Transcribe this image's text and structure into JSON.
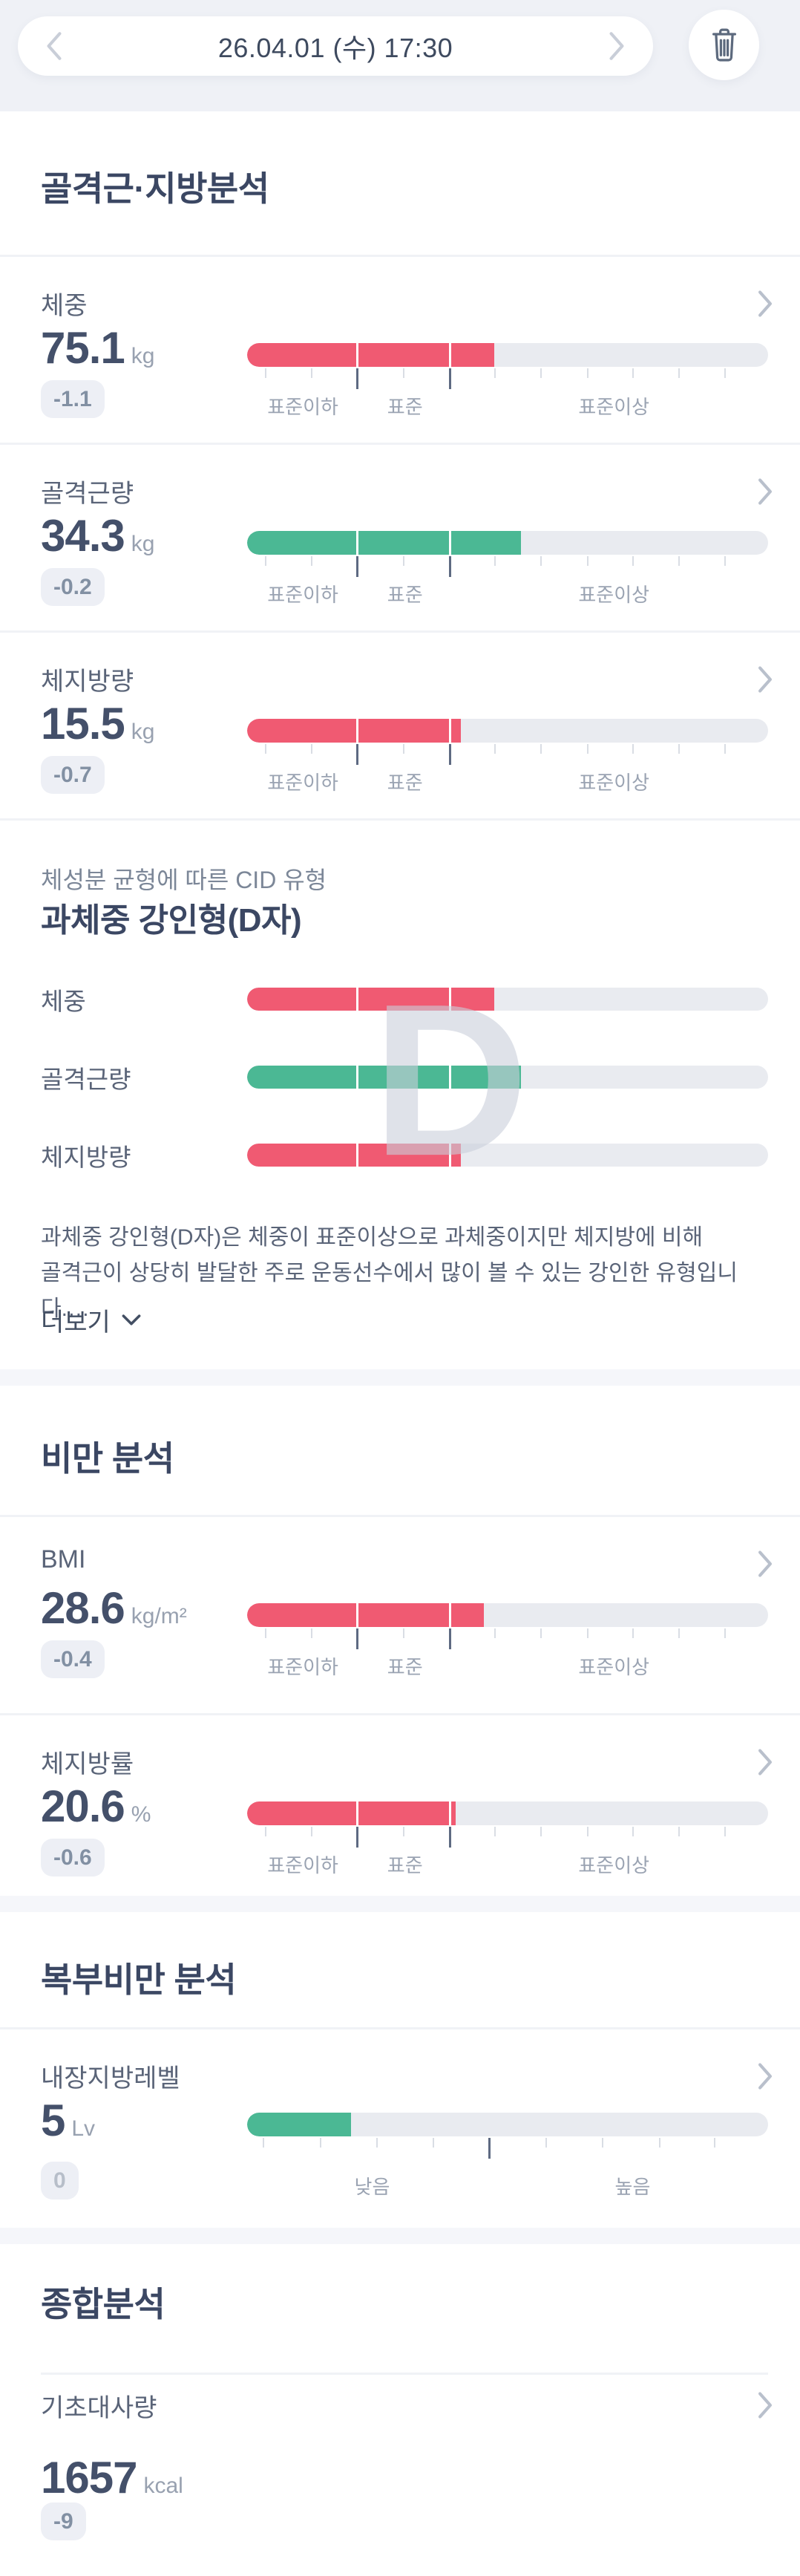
{
  "nav": {
    "date": "26.04.01 (수) 17:30",
    "prev_icon": "chevron-left",
    "next_icon": "chevron-right",
    "delete_icon": "trash"
  },
  "colors": {
    "accent_pink": "#F05A72",
    "accent_green": "#4BB894",
    "track_gray": "#E9EBF0",
    "title_navy": "#3B4763",
    "badge_bg": "#EDEFF5"
  },
  "scales": {
    "standard": {
      "ticks": [
        3.4,
        12.2,
        21,
        29.9,
        38.7,
        47.5,
        56.3,
        65.2,
        74,
        82.8,
        91.6
      ],
      "tall_indices": [
        2,
        4
      ],
      "separators": [
        21,
        38.7
      ],
      "labels": [
        {
          "text": "표준이하",
          "pos": 10.7
        },
        {
          "text": "표준",
          "pos": 30.3
        },
        {
          "text": "표준이상",
          "pos": 70.4
        }
      ]
    },
    "visceral": {
      "ticks": [
        3,
        13.9,
        24.8,
        35.6,
        46.3,
        57.2,
        68.1,
        79,
        89.6
      ],
      "tall_indices": [
        4
      ],
      "separators": [],
      "labels": [
        {
          "text": "낮음",
          "pos": 24
        },
        {
          "text": "높음",
          "pos": 74
        }
      ]
    }
  },
  "sections": {
    "muscle_fat": {
      "title": "골격근·지방분석",
      "rows": [
        {
          "label": "체중",
          "value": "75.1",
          "unit": "kg",
          "delta": "-1.1",
          "fill_pct": 47.5,
          "color": "#F05A72",
          "scale": "standard"
        },
        {
          "label": "골격근량",
          "value": "34.3",
          "unit": "kg",
          "delta": "-0.2",
          "fill_pct": 52.5,
          "color": "#4BB894",
          "scale": "standard"
        },
        {
          "label": "체지방량",
          "value": "15.5",
          "unit": "kg",
          "delta": "-0.7",
          "fill_pct": 41,
          "color": "#F05A72",
          "scale": "standard"
        }
      ]
    },
    "cid": {
      "subtitle": "체성분 균형에 따른 CID 유형",
      "title": "과체중 강인형(D자)",
      "letter": "D",
      "bars": [
        {
          "label": "체중",
          "fill_pct": 47.5,
          "color": "#F05A72",
          "scale": "standard"
        },
        {
          "label": "골격근량",
          "fill_pct": 52.5,
          "color": "#4BB894",
          "scale": "standard"
        },
        {
          "label": "체지방량",
          "fill_pct": 41,
          "color": "#F05A72",
          "scale": "standard"
        }
      ],
      "description_line1": "과체중 강인형(D자)은 체중이 표준이상으로 과체중이지만 체지방에 비해",
      "description_line2": "골격근이 상당히 발달한 주로 운동선수에서 많이 볼 수 있는 강인한 유형입니다.…",
      "more_label": "더보기"
    },
    "obesity": {
      "title": "비만 분석",
      "rows": [
        {
          "label": "BMI",
          "value": "28.6",
          "unit": "kg/m²",
          "delta": "-0.4",
          "fill_pct": 45.5,
          "color": "#F05A72",
          "scale": "standard"
        },
        {
          "label": "체지방률",
          "value": "20.6",
          "unit": "%",
          "delta": "-0.6",
          "fill_pct": 40,
          "color": "#F05A72",
          "scale": "standard"
        }
      ]
    },
    "abdominal": {
      "title": "복부비만 분석",
      "rows": [
        {
          "label": "내장지방레벨",
          "value": "5",
          "unit": "Lv",
          "delta": "0",
          "delta_muted": true,
          "fill_pct": 20,
          "color": "#4BB894",
          "scale": "visceral"
        }
      ]
    },
    "overall": {
      "title": "종합분석",
      "rows": [
        {
          "label": "기초대사량",
          "value": "1657",
          "unit": "kcal",
          "delta": "-9"
        }
      ]
    }
  }
}
